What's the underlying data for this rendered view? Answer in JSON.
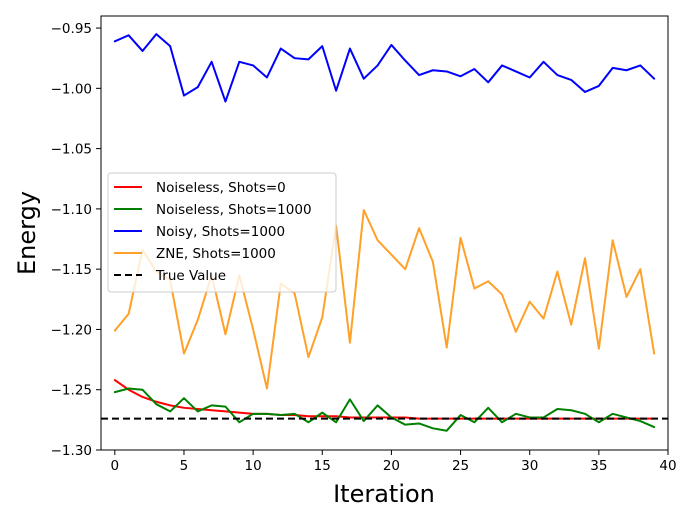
{
  "chart_data": {
    "type": "line",
    "title": "",
    "xlabel": "Iteration",
    "ylabel": "Energy",
    "xlim": [
      -1,
      40
    ],
    "ylim": [
      -1.3,
      -0.94
    ],
    "xticks": [
      0,
      5,
      10,
      15,
      20,
      25,
      30,
      35,
      40
    ],
    "xtick_labels": [
      "0",
      "5",
      "10",
      "15",
      "20",
      "25",
      "30",
      "35",
      "40"
    ],
    "yticks": [
      -1.3,
      -1.25,
      -1.2,
      -1.15,
      -1.1,
      -1.05,
      -1.0,
      -0.95
    ],
    "ytick_labels": [
      "−1.30",
      "−1.25",
      "−1.20",
      "−1.15",
      "−1.10",
      "−1.05",
      "−1.00",
      "−0.95"
    ],
    "grid": false,
    "legend_position": "center-left",
    "x": [
      0,
      1,
      2,
      3,
      4,
      5,
      6,
      7,
      8,
      9,
      10,
      11,
      12,
      13,
      14,
      15,
      16,
      17,
      18,
      19,
      20,
      21,
      22,
      23,
      24,
      25,
      26,
      27,
      28,
      29,
      30,
      31,
      32,
      33,
      34,
      35,
      36,
      37,
      38,
      39
    ],
    "series": [
      {
        "name": "Noiseless, Shots=0",
        "color": "#ff0000",
        "style": "solid",
        "values": [
          -1.242,
          -1.25,
          -1.256,
          -1.26,
          -1.263,
          -1.265,
          -1.266,
          -1.267,
          -1.268,
          -1.269,
          -1.27,
          -1.27,
          -1.271,
          -1.271,
          -1.272,
          -1.272,
          -1.272,
          -1.273,
          -1.273,
          -1.273,
          -1.273,
          -1.273,
          -1.274,
          -1.274,
          -1.274,
          -1.274,
          -1.274,
          -1.274,
          -1.274,
          -1.274,
          -1.274,
          -1.274,
          -1.274,
          -1.274,
          -1.274,
          -1.274,
          -1.274,
          -1.274,
          -1.274,
          -1.274
        ]
      },
      {
        "name": "Noiseless, Shots=1000",
        "color": "#008000",
        "style": "solid",
        "values": [
          -1.252,
          -1.249,
          -1.25,
          -1.262,
          -1.268,
          -1.257,
          -1.268,
          -1.263,
          -1.264,
          -1.277,
          -1.27,
          -1.27,
          -1.271,
          -1.27,
          -1.277,
          -1.269,
          -1.277,
          -1.258,
          -1.276,
          -1.263,
          -1.273,
          -1.279,
          -1.278,
          -1.282,
          -1.284,
          -1.271,
          -1.277,
          -1.265,
          -1.277,
          -1.27,
          -1.273,
          -1.273,
          -1.266,
          -1.267,
          -1.27,
          -1.277,
          -1.27,
          -1.273,
          -1.276,
          -1.281
        ]
      },
      {
        "name": "Noisy, Shots=1000",
        "color": "#0000ff",
        "style": "solid",
        "values": [
          -0.961,
          -0.956,
          -0.969,
          -0.955,
          -0.965,
          -1.006,
          -0.999,
          -0.978,
          -1.011,
          -0.978,
          -0.981,
          -0.991,
          -0.967,
          -0.975,
          -0.976,
          -0.965,
          -1.002,
          -0.967,
          -0.992,
          -0.981,
          -0.964,
          -0.977,
          -0.989,
          -0.985,
          -0.986,
          -0.99,
          -0.984,
          -0.995,
          -0.981,
          -0.986,
          -0.991,
          -0.978,
          -0.989,
          -0.993,
          -1.003,
          -0.998,
          -0.983,
          -0.985,
          -0.981,
          -0.992
        ]
      },
      {
        "name": "ZNE, Shots=1000",
        "color": "#ffa028",
        "style": "solid",
        "values": [
          -1.201,
          -1.187,
          -1.134,
          -1.152,
          -1.159,
          -1.22,
          -1.192,
          -1.155,
          -1.204,
          -1.155,
          -1.2,
          -1.249,
          -1.162,
          -1.17,
          -1.223,
          -1.19,
          -1.114,
          -1.211,
          -1.101,
          -1.126,
          -1.138,
          -1.15,
          -1.116,
          -1.144,
          -1.215,
          -1.124,
          -1.166,
          -1.16,
          -1.171,
          -1.202,
          -1.177,
          -1.191,
          -1.152,
          -1.196,
          -1.141,
          -1.216,
          -1.126,
          -1.173,
          -1.15,
          -1.22
        ]
      },
      {
        "name": "True Value",
        "color": "#000000",
        "style": "dashed",
        "constant": -1.274
      }
    ]
  }
}
